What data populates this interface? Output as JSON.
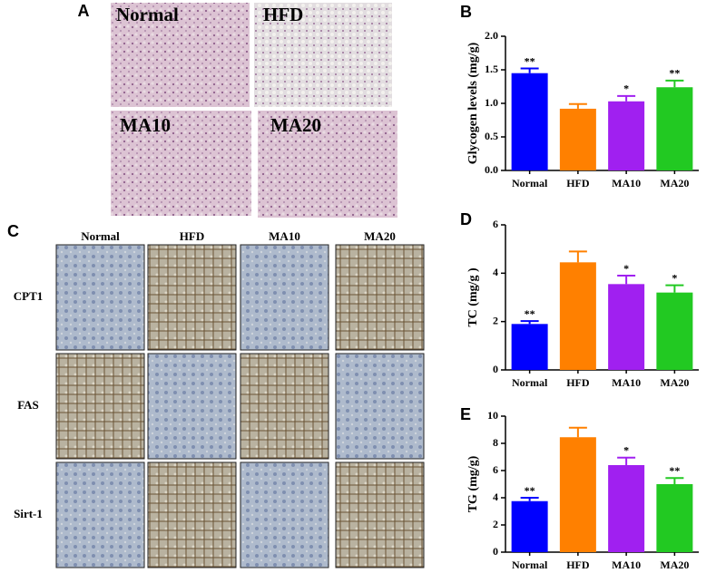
{
  "panel_a": {
    "letter": "A",
    "labels": [
      "Normal",
      "HFD",
      "MA10",
      "MA20"
    ]
  },
  "panel_c": {
    "letter": "C",
    "columns": [
      "Normal",
      "HFD",
      "MA10",
      "MA20"
    ],
    "rows": [
      "CPT1",
      "FAS",
      "Sirt-1"
    ]
  },
  "chart_data": [
    {
      "type": "bar",
      "panel": "B",
      "ylabel": "Glycogen levels (mg/g)",
      "categories": [
        "Normal",
        "HFD",
        "MA10",
        "MA20"
      ],
      "values": [
        1.45,
        0.92,
        1.03,
        1.24
      ],
      "errors": [
        0.07,
        0.07,
        0.08,
        0.1
      ],
      "annotations": [
        "**",
        null,
        "*",
        "**"
      ],
      "colors": [
        "#0000ff",
        "#ff8000",
        "#a020f0",
        "#22c922"
      ],
      "ylim": [
        0,
        2
      ],
      "yticks": [
        {
          "value": 0,
          "label": "0.0"
        },
        0.5,
        {
          "value": 1,
          "label": "1.0"
        },
        1.5,
        {
          "value": 2,
          "label": "2.0"
        }
      ]
    },
    {
      "type": "bar",
      "panel": "D",
      "ylabel": "TC  (mg/g )",
      "categories": [
        "Normal",
        "HFD",
        "MA10",
        "MA20"
      ],
      "values": [
        1.9,
        4.45,
        3.55,
        3.2
      ],
      "errors": [
        0.12,
        0.45,
        0.35,
        0.3
      ],
      "annotations": [
        "**",
        null,
        "*",
        "*"
      ],
      "colors": [
        "#0000ff",
        "#ff8000",
        "#a020f0",
        "#22c922"
      ],
      "ylim": [
        0,
        6
      ],
      "yticks": [
        0,
        2,
        4,
        6
      ]
    },
    {
      "type": "bar",
      "panel": "E",
      "ylabel": "TG  (mg/g)",
      "categories": [
        "Normal",
        "HFD",
        "MA10",
        "MA20"
      ],
      "values": [
        3.75,
        8.45,
        6.4,
        5.0
      ],
      "errors": [
        0.25,
        0.7,
        0.55,
        0.45
      ],
      "annotations": [
        "**",
        null,
        "*",
        "**"
      ],
      "colors": [
        "#0000ff",
        "#ff8000",
        "#a020f0",
        "#22c922"
      ],
      "ylim": [
        0,
        10
      ],
      "yticks": [
        0,
        2,
        4,
        6,
        8,
        10
      ]
    }
  ]
}
